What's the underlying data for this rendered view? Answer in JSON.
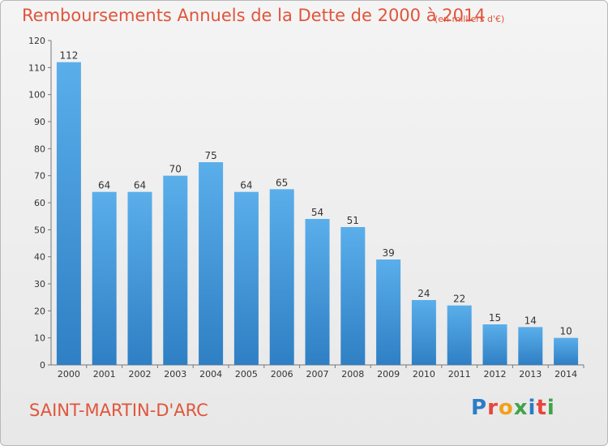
{
  "chart_data": {
    "type": "bar",
    "title": "Remboursements Annuels de la Dette de 2000 à 2014",
    "unit": "(en milliers d'€)",
    "categories": [
      "2000",
      "2001",
      "2002",
      "2003",
      "2004",
      "2005",
      "2006",
      "2007",
      "2008",
      "2009",
      "2010",
      "2011",
      "2012",
      "2013",
      "2014"
    ],
    "values": [
      112,
      64,
      64,
      70,
      75,
      64,
      65,
      54,
      51,
      39,
      24,
      22,
      15,
      14,
      10
    ],
    "ylim": [
      0,
      120
    ],
    "yticks": [
      0,
      10,
      20,
      30,
      40,
      50,
      60,
      70,
      80,
      90,
      100,
      110,
      120
    ],
    "grid": false,
    "bar_color": "#3f8fd2"
  },
  "footer": {
    "commune": "SAINT-MARTIN-D'ARC",
    "logo": "Proxiti"
  },
  "colors": {
    "title": "#e0553b",
    "logo_letters": [
      "#2b7cc7",
      "#e8453c",
      "#f2a01b",
      "#41a447",
      "#2b7cc7",
      "#e8453c",
      "#41a447"
    ]
  }
}
